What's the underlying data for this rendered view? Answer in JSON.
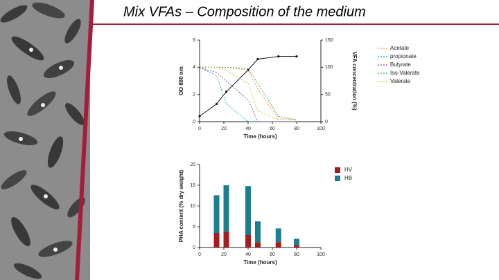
{
  "title": "Mix VFAs – Composition of the medium",
  "chart_data": [
    {
      "type": "line",
      "x": [
        0,
        14,
        22,
        40,
        48,
        65,
        80
      ],
      "xlim": [
        0,
        100
      ],
      "xticks": [
        0,
        20,
        40,
        60,
        80,
        100
      ],
      "ylim": [
        0,
        6
      ],
      "yticks": [
        0,
        2,
        4,
        6
      ],
      "y2lim": [
        0,
        150
      ],
      "y2ticks": [
        0,
        50,
        100,
        150
      ],
      "xlabel": "Time (hours)",
      "ylabel": "OD 880 nm",
      "y2label": "VFA concentration (%)",
      "series": [
        {
          "color": "#111111",
          "values": [
            0.4,
            1.3,
            2.2,
            3.8,
            4.6,
            4.8,
            4.8
          ]
        },
        {
          "name": "Acetate",
          "color": "#e08a3c",
          "axis": "y2",
          "values": [
            100,
            100,
            100,
            95,
            60,
            5,
            5
          ]
        },
        {
          "name": "propionate",
          "color": "#2a8fb0",
          "axis": "y2",
          "values": [
            100,
            85,
            33,
            0,
            0,
            0,
            0
          ]
        },
        {
          "name": "Butyrate",
          "color": "#8a3fa0",
          "axis": "y2",
          "values": [
            100,
            90,
            75,
            40,
            0,
            0,
            0
          ]
        },
        {
          "name": "Iso-Valerate",
          "color": "#3a9a4a",
          "axis": "y2",
          "values": [
            100,
            100,
            100,
            98,
            70,
            10,
            3
          ]
        },
        {
          "name": "Valerate",
          "color": "#c8c040",
          "axis": "y2",
          "values": [
            100,
            100,
            95,
            70,
            20,
            3,
            3
          ]
        }
      ]
    },
    {
      "type": "bar",
      "stacked": true,
      "x": [
        14,
        22,
        40,
        48,
        65,
        80
      ],
      "xlim": [
        0,
        100
      ],
      "xticks": [
        0,
        20,
        40,
        60,
        80,
        100
      ],
      "ylim": [
        0,
        20
      ],
      "yticks": [
        0,
        5,
        10,
        15,
        20
      ],
      "xlabel": "Time (hours)",
      "ylabel": "PHA content (% dry weight)",
      "series": [
        {
          "name": "HV",
          "color": "#a51d1d",
          "values": [
            3.5,
            3.8,
            3.0,
            1.3,
            1.3,
            0.5
          ]
        },
        {
          "name": "HB",
          "color": "#1d7f8e",
          "values": [
            9.1,
            11.2,
            11.8,
            5.0,
            3.3,
            1.6
          ]
        }
      ]
    }
  ]
}
